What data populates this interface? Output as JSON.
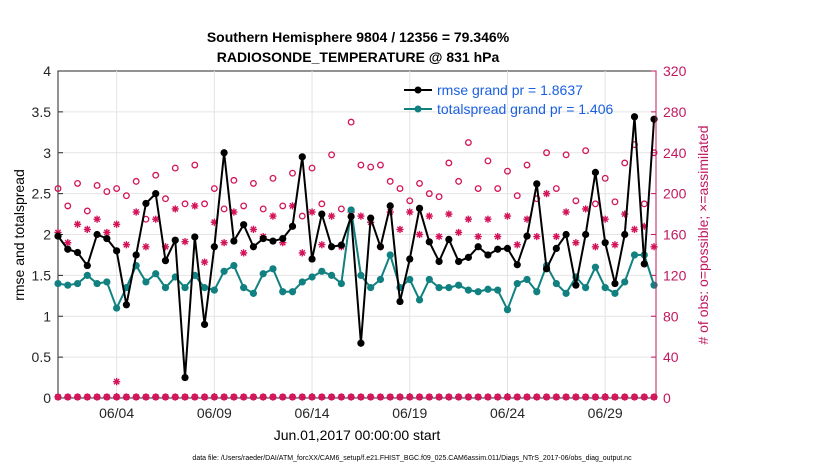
{
  "chart_data": {
    "type": "line",
    "title_line1": "Southern Hemisphere 9804 / 12356 = 79.346%",
    "title_line2": "RADIOSONDE_TEMPERATURE @ 831 hPa",
    "xlabel": "Jun.01,2017 00:00:00 start",
    "ylabel_left": "rmse and totalspread",
    "ylabel_right": "# of obs: o=possible; ×=assimilated",
    "footnote": "data file: /Users/raeder/DAI/ATM_forcXX/CAM6_setup/f.e21.FHIST_BGC.f09_025.CAM6assim.011/Diags_NTrS_2017-06/obs_diag_output.nc",
    "x_tick_labels": [
      "06/04",
      "06/09",
      "06/14",
      "06/19",
      "06/24",
      "06/29"
    ],
    "x_tick_days": [
      4,
      9,
      14,
      19,
      24,
      29
    ],
    "xlim": [
      1,
      31.6
    ],
    "ylim_left": [
      0,
      4
    ],
    "ylim_right": [
      0,
      320
    ],
    "left_ticks": [
      "0",
      "0.5",
      "1",
      "1.5",
      "2",
      "2.5",
      "3",
      "3.5",
      "4"
    ],
    "right_ticks": [
      "0",
      "40",
      "80",
      "120",
      "160",
      "200",
      "240",
      "280",
      "320"
    ],
    "colors": {
      "rmse": "#000000",
      "spread": "#108080",
      "obs": "#d4145a",
      "legend_text": "#1a5fe0",
      "axis_right": "#c21860"
    },
    "legend": {
      "position": "top-right",
      "rmse_label": "rmse grand pr = 1.8637",
      "spread_label": "totalspread grand pr = 1.406"
    },
    "series": [
      {
        "name": "rmse",
        "x": [
          1.0,
          1.5,
          2.0,
          2.5,
          3.0,
          3.5,
          4.0,
          4.5,
          5.0,
          5.5,
          6.0,
          6.5,
          7.0,
          7.5,
          8.0,
          8.5,
          9.0,
          9.5,
          10.0,
          10.5,
          11.0,
          11.5,
          12.0,
          12.5,
          13.0,
          13.5,
          14.0,
          14.5,
          15.0,
          15.5,
          16.0,
          16.5,
          17.0,
          17.5,
          18.0,
          18.5,
          19.0,
          19.5,
          20.0,
          20.5,
          21.0,
          21.5,
          22.0,
          22.5,
          23.0,
          23.5,
          24.0,
          24.5,
          25.0,
          25.5,
          26.0,
          26.5,
          27.0,
          27.5,
          28.0,
          28.5,
          29.0,
          29.5,
          30.0,
          30.5,
          31.0,
          31.5
        ],
        "values": [
          1.98,
          1.82,
          1.78,
          1.62,
          2.0,
          1.95,
          1.8,
          1.14,
          1.75,
          2.38,
          2.5,
          1.68,
          1.93,
          0.25,
          1.97,
          0.9,
          1.85,
          3.0,
          1.92,
          2.12,
          1.85,
          1.95,
          1.92,
          1.95,
          2.1,
          2.95,
          1.7,
          2.25,
          1.85,
          1.87,
          2.22,
          0.67,
          2.2,
          1.85,
          2.35,
          1.18,
          1.7,
          2.32,
          1.91,
          1.67,
          1.94,
          1.67,
          1.72,
          1.85,
          1.75,
          1.82,
          1.83,
          1.63,
          1.98,
          2.62,
          1.58,
          1.83,
          2.0,
          1.38,
          2.0,
          2.76,
          1.9,
          1.4,
          2.0,
          3.44,
          1.64,
          3.41
        ]
      },
      {
        "name": "totalspread",
        "x": [
          1.0,
          1.5,
          2.0,
          2.5,
          3.0,
          3.5,
          4.0,
          4.5,
          5.0,
          5.5,
          6.0,
          6.5,
          7.0,
          7.5,
          8.0,
          8.5,
          9.0,
          9.5,
          10.0,
          10.5,
          11.0,
          11.5,
          12.0,
          12.5,
          13.0,
          13.5,
          14.0,
          14.5,
          15.0,
          15.5,
          16.0,
          16.5,
          17.0,
          17.5,
          18.0,
          18.5,
          19.0,
          19.5,
          20.0,
          20.5,
          21.0,
          21.5,
          22.0,
          22.5,
          23.0,
          23.5,
          24.0,
          24.5,
          25.0,
          25.5,
          26.0,
          26.5,
          27.0,
          27.5,
          28.0,
          28.5,
          29.0,
          29.5,
          30.0,
          30.5,
          31.0,
          31.5
        ],
        "values": [
          1.4,
          1.38,
          1.4,
          1.5,
          1.4,
          1.42,
          1.1,
          1.35,
          1.62,
          1.42,
          1.52,
          1.35,
          1.48,
          1.35,
          1.5,
          1.35,
          1.32,
          1.55,
          1.62,
          1.35,
          1.28,
          1.52,
          1.58,
          1.3,
          1.3,
          1.42,
          1.48,
          1.55,
          1.5,
          1.4,
          2.3,
          1.5,
          1.35,
          1.45,
          1.75,
          1.35,
          1.45,
          1.2,
          1.45,
          1.35,
          1.35,
          1.38,
          1.32,
          1.3,
          1.33,
          1.32,
          1.08,
          1.4,
          1.45,
          1.3,
          1.62,
          1.4,
          1.28,
          1.48,
          1.35,
          1.6,
          1.35,
          1.28,
          1.42,
          1.75,
          1.75,
          1.38
        ]
      },
      {
        "name": "obs_possible",
        "x": [
          1.0,
          1.5,
          2.0,
          2.5,
          3.0,
          3.5,
          4.0,
          4.5,
          5.0,
          5.5,
          6.0,
          6.5,
          7.0,
          7.5,
          8.0,
          8.5,
          9.0,
          9.5,
          10.0,
          10.5,
          11.0,
          11.5,
          12.0,
          12.5,
          13.0,
          13.5,
          14.0,
          14.5,
          15.0,
          15.5,
          16.0,
          16.5,
          17.0,
          17.5,
          18.0,
          18.5,
          19.0,
          19.5,
          20.0,
          20.5,
          21.0,
          21.5,
          22.0,
          22.5,
          23.0,
          23.5,
          24.0,
          24.5,
          25.0,
          25.5,
          26.0,
          26.5,
          27.0,
          27.5,
          28.0,
          28.5,
          29.0,
          29.5,
          30.0,
          30.5,
          31.0,
          31.5
        ],
        "values": [
          205,
          188,
          210,
          183,
          208,
          202,
          205,
          198,
          212,
          175,
          218,
          195,
          225,
          190,
          228,
          190,
          205,
          185,
          213,
          188,
          210,
          185,
          215,
          188,
          220,
          178,
          225,
          190,
          238,
          185,
          270,
          228,
          226,
          228,
          212,
          205,
          193,
          210,
          200,
          197,
          230,
          212,
          250,
          205,
          232,
          205,
          222,
          198,
          228,
          195,
          240,
          205,
          238,
          193,
          242,
          190,
          215,
          192,
          230,
          248,
          190,
          240
        ]
      },
      {
        "name": "obs_assimilated",
        "x": [
          1.0,
          1.5,
          2.0,
          2.5,
          3.0,
          3.5,
          4.0,
          4.5,
          5.0,
          5.5,
          6.0,
          6.5,
          7.0,
          7.5,
          8.0,
          8.5,
          9.0,
          9.5,
          10.0,
          10.5,
          11.0,
          11.5,
          12.0,
          12.5,
          13.0,
          13.5,
          14.0,
          14.5,
          15.0,
          15.5,
          16.0,
          16.5,
          17.0,
          17.5,
          18.0,
          18.5,
          19.0,
          19.5,
          20.0,
          20.5,
          21.0,
          21.5,
          22.0,
          22.5,
          23.0,
          23.5,
          24.0,
          24.5,
          25.0,
          25.5,
          26.0,
          26.5,
          27.0,
          27.5,
          28.0,
          28.5,
          29.0,
          29.5,
          30.0,
          30.5,
          31.0,
          31.5
        ],
        "values": [
          162,
          152,
          170,
          165,
          175,
          162,
          170,
          150,
          182,
          148,
          175,
          148,
          185,
          153,
          188,
          133,
          172,
          152,
          182,
          142,
          165,
          158,
          178,
          152,
          188,
          142,
          182,
          150,
          178,
          148,
          182,
          178,
          172,
          148,
          182,
          165,
          182,
          160,
          178,
          158,
          180,
          162,
          175,
          158,
          175,
          158,
          178,
          150,
          175,
          158,
          200,
          158,
          182,
          152,
          185,
          148,
          175,
          150,
          180,
          165,
          168,
          148
        ]
      }
    ]
  }
}
